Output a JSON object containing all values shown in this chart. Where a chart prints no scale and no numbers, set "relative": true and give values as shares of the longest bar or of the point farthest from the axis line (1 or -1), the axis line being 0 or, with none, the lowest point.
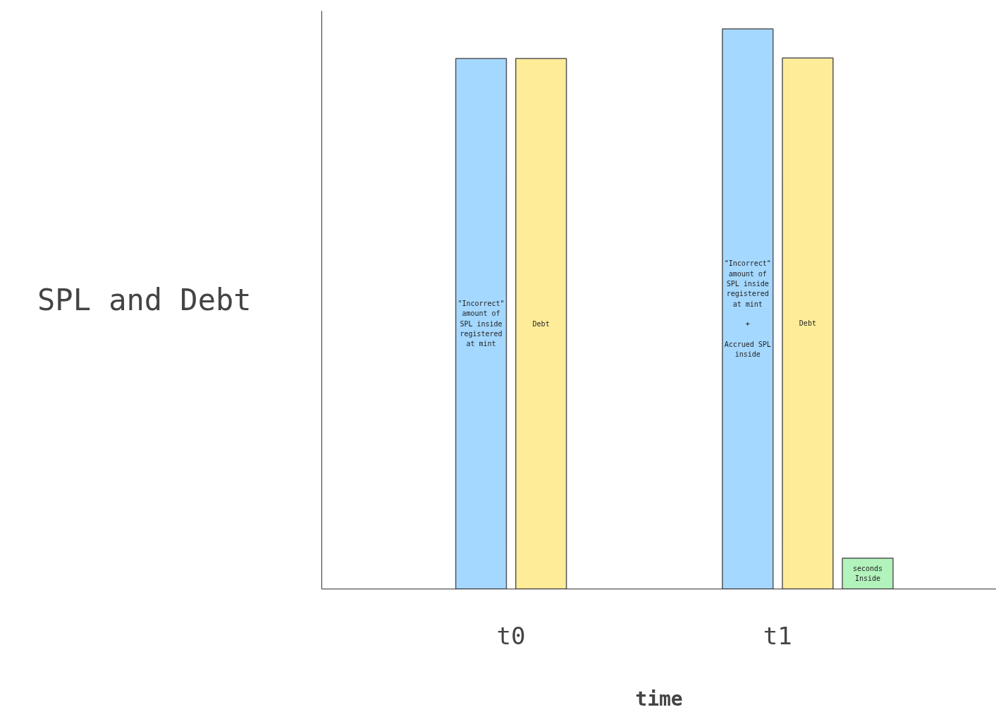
{
  "chart_data": {
    "type": "bar",
    "relative": true,
    "xlabel": "time",
    "ylabel": "SPL and Debt",
    "categories": [
      "t0",
      "t1"
    ],
    "series": [
      {
        "color": "#a5d8ff",
        "values": [
          0.947,
          1
        ]
      },
      {
        "color": "#ffec99",
        "values": [
          0.947,
          0.948
        ]
      },
      {
        "color": "#b2f2bb",
        "values": [
          null,
          0.055
        ]
      }
    ],
    "annotations": [
      "\"Incorrect\"\namount of\nSPL inside\nregistered\nat mint",
      "Debt",
      "\"Incorrect\"\namount of\nSPL inside\nregistered\nat mint\n\n+\n\nAccrued SPL\ninside",
      "Debt",
      "seconds\nInside"
    ]
  }
}
